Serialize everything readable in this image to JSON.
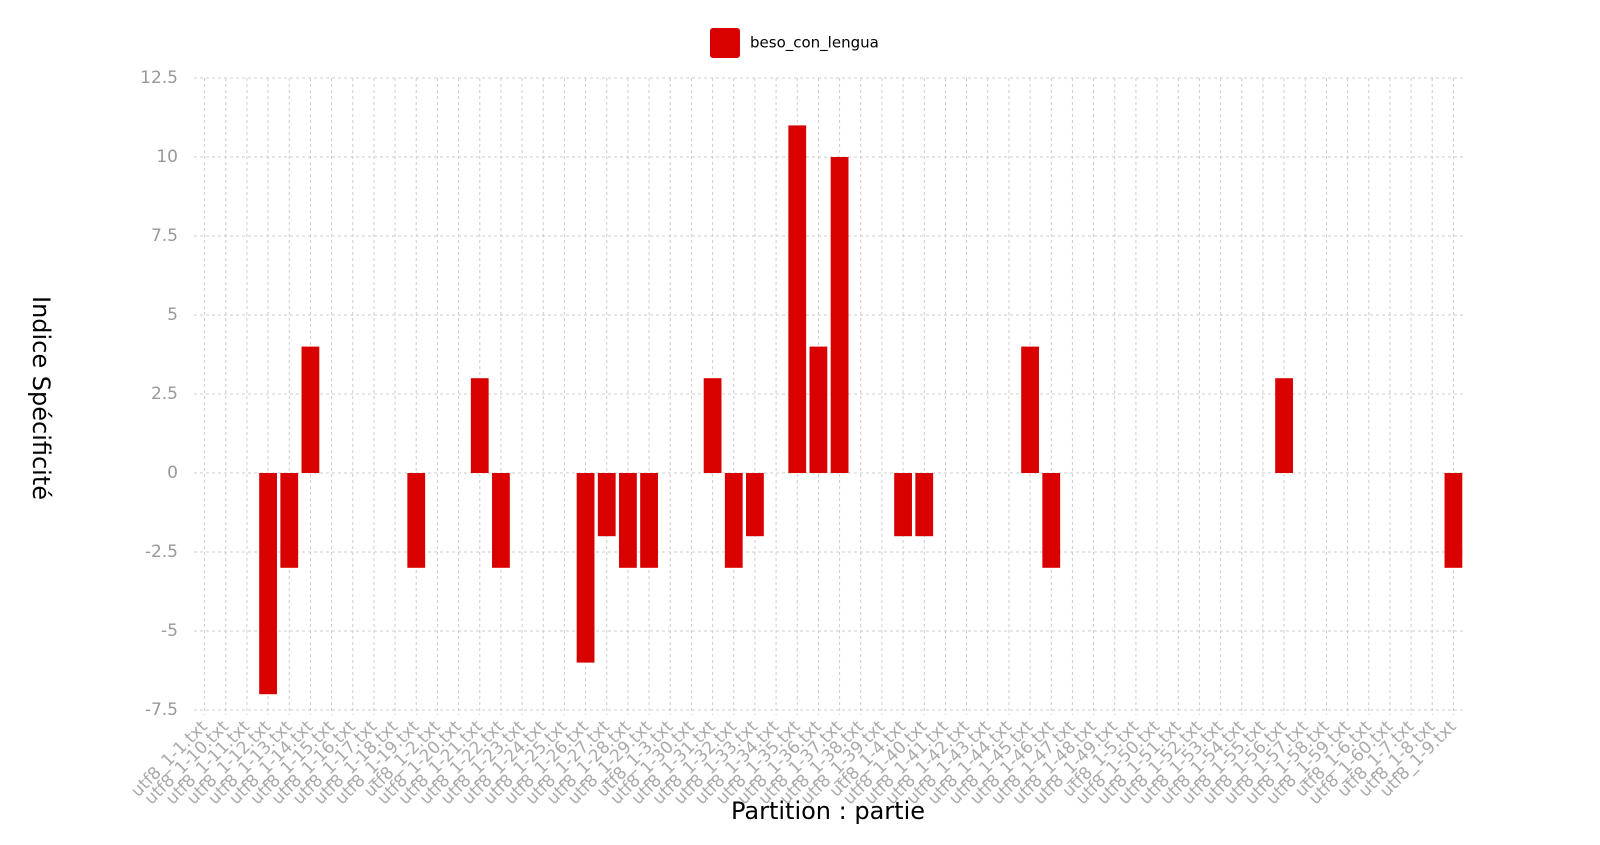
{
  "chart_data": {
    "type": "bar",
    "x_label": "Partition : partie",
    "y_label": "Indice Spécificité",
    "categories": [
      "utf8_1-1.txt",
      "utf8_1-10.txt",
      "utf8_1-11.txt",
      "utf8_1-12.txt",
      "utf8_1-13.txt",
      "utf8_1-14.txt",
      "utf8_1-15.txt",
      "utf8_1-16.txt",
      "utf8_1-17.txt",
      "utf8_1-18.txt",
      "utf8_1-19.txt",
      "utf8_1-2.txt",
      "utf8_1-20.txt",
      "utf8_1-21.txt",
      "utf8_1-22.txt",
      "utf8_1-23.txt",
      "utf8_1-24.txt",
      "utf8_1-25.txt",
      "utf8_1-26.txt",
      "utf8_1-27.txt",
      "utf8_1-28.txt",
      "utf8_1-29.txt",
      "utf8_1-3.txt",
      "utf8_1-30.txt",
      "utf8_1-31.txt",
      "utf8_1-32.txt",
      "utf8_1-33.txt",
      "utf8_1-34.txt",
      "utf8_1-35.txt",
      "utf8_1-36.txt",
      "utf8_1-37.txt",
      "utf8_1-38.txt",
      "utf8_1-39.txt",
      "utf8_1-4.txt",
      "utf8_1-40.txt",
      "utf8_1-41.txt",
      "utf8_1-42.txt",
      "utf8_1-43.txt",
      "utf8_1-44.txt",
      "utf8_1-45.txt",
      "utf8_1-46.txt",
      "utf8_1-47.txt",
      "utf8_1-48.txt",
      "utf8_1-49.txt",
      "utf8_1-5.txt",
      "utf8_1-50.txt",
      "utf8_1-51.txt",
      "utf8_1-52.txt",
      "utf8_1-53.txt",
      "utf8_1-54.txt",
      "utf8_1-55.txt",
      "utf8_1-56.txt",
      "utf8_1-57.txt",
      "utf8_1-58.txt",
      "utf8_1-59.txt",
      "utf8_1-6.txt",
      "utf8_1-60.txt",
      "utf8_1-7.txt",
      "utf8_1-8.txt",
      "utf8_1-9.txt"
    ],
    "series": [
      {
        "name": "beso_con_lengua",
        "color": "#d90000",
        "values": [
          0,
          0,
          0,
          -7,
          -3,
          4,
          0,
          0,
          0,
          0,
          -3,
          0,
          0,
          3,
          -3,
          0,
          0,
          0,
          -6,
          -2,
          -3,
          -3,
          0,
          0,
          3,
          -3,
          -2,
          0,
          11,
          4,
          10,
          0,
          0,
          -2,
          -2,
          0,
          0,
          0,
          0,
          4,
          -3,
          0,
          0,
          0,
          0,
          0,
          0,
          0,
          0,
          0,
          0,
          3,
          0,
          0,
          0,
          0,
          0,
          0,
          0,
          -3
        ]
      }
    ],
    "ylim": [
      -7.5,
      12.5
    ],
    "yticks": [
      12.5,
      10,
      7.5,
      5,
      2.5,
      0,
      -2.5,
      -5,
      -7.5
    ],
    "grid": true,
    "legend": "top"
  }
}
